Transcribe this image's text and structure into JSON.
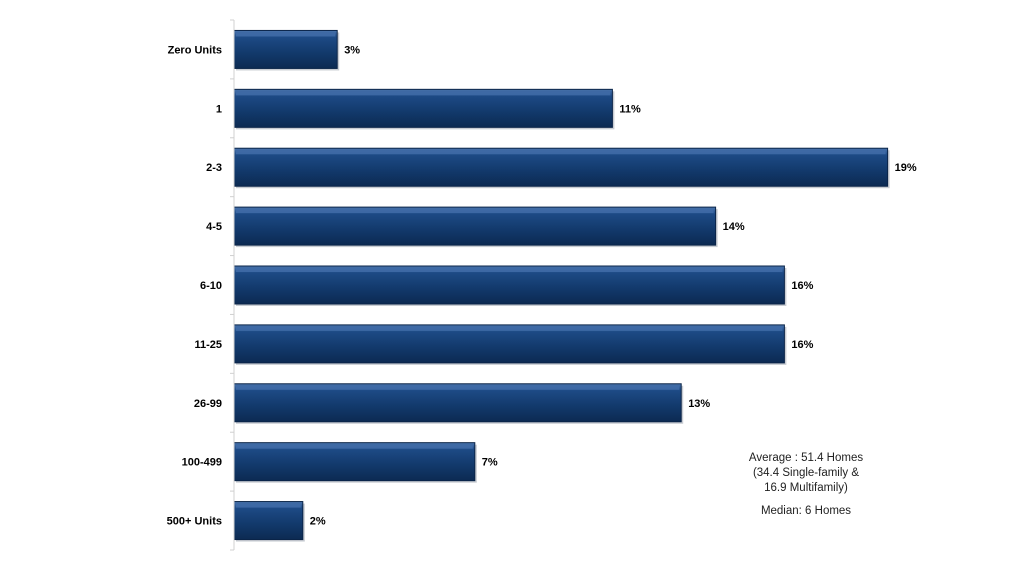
{
  "chart_data": {
    "type": "bar",
    "orientation": "horizontal",
    "categories": [
      "Zero Units",
      "1",
      "2-3",
      "4-5",
      "6-10",
      "11-25",
      "26-99",
      "100-499",
      "500+ Units"
    ],
    "values": [
      3,
      11,
      19,
      14,
      16,
      16,
      13,
      7,
      2
    ],
    "value_labels": [
      "3%",
      "11%",
      "19%",
      "14%",
      "16%",
      "16%",
      "13%",
      "7%",
      "2%"
    ],
    "xlim": [
      0,
      20
    ],
    "grid": false,
    "colors": {
      "bar": "#12396b",
      "bar_highlight": "#3f6aa6",
      "bar_edge": "#0a2448"
    }
  },
  "annotation": {
    "average_line1": "Average : 51.4 Homes",
    "average_line2": "(34.4 Single-family &",
    "average_line3": "16.9 Multifamily)",
    "median": "Median: 6 Homes"
  }
}
